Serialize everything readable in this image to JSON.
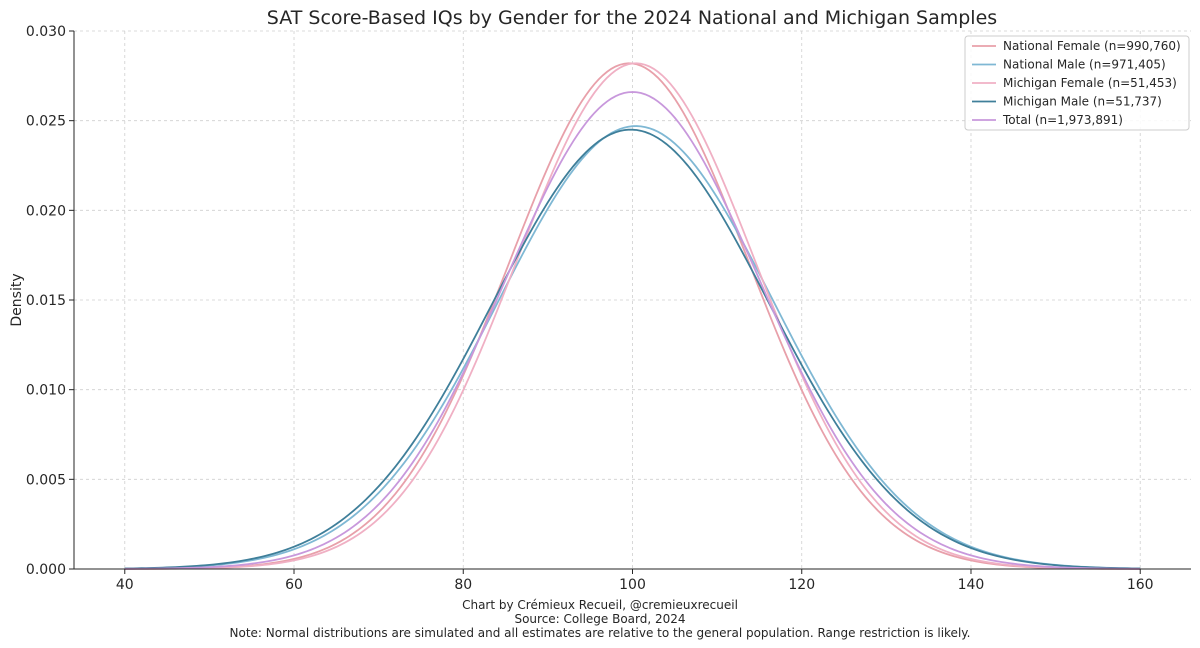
{
  "chart_data": {
    "type": "line",
    "title": "SAT Score-Based IQs by Gender for the 2024 National and Michigan Samples",
    "xlabel": "",
    "ylabel": "Density",
    "xlim": [
      34,
      166
    ],
    "ylim": [
      0,
      0.03
    ],
    "x_ticks": [
      "40",
      "60",
      "80",
      "100",
      "120",
      "140",
      "160"
    ],
    "y_ticks": [
      "0.000",
      "0.005",
      "0.010",
      "0.015",
      "0.020",
      "0.025",
      "0.030"
    ],
    "grid": true,
    "legend_position": "top-right",
    "x_range": [
      40,
      160
    ],
    "series": [
      {
        "name": "National Female (n=990,760)",
        "mean": 99.6,
        "sd": 14.15,
        "peak": 0.0282,
        "color": "#e8a0aa"
      },
      {
        "name": "National Male (n=971,405)",
        "mean": 100.4,
        "sd": 16.2,
        "peak": 0.0247,
        "color": "#7fb8d4"
      },
      {
        "name": "Michigan Female (n=51,453)",
        "mean": 100.4,
        "sd": 14.15,
        "peak": 0.0282,
        "color": "#f0b0c4"
      },
      {
        "name": "Michigan Male (n=51,737)",
        "mean": 99.8,
        "sd": 16.3,
        "peak": 0.0245,
        "color": "#3f7f9a"
      },
      {
        "name": "Total (n=1,973,891)",
        "mean": 100.0,
        "sd": 15.0,
        "peak": 0.0266,
        "color": "#c898dc"
      }
    ]
  },
  "footer": {
    "credit": "Chart by Crémieux Recueil, @cremieuxrecueil",
    "source": "Source: College Board, 2024",
    "note": "Note: Normal distributions are simulated and all estimates are relative to the general population. Range restriction is likely."
  }
}
